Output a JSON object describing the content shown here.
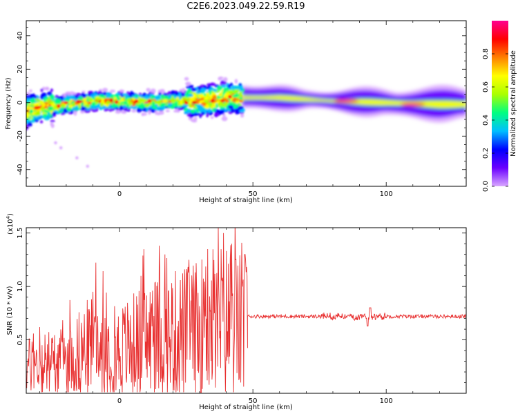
{
  "title": "C2E6.2023.049.22.59.R19",
  "chart_data": [
    {
      "type": "heatmap",
      "xlabel": "Height of straight line (km)",
      "ylabel": "Frequency (Hz)",
      "xlim": [
        -35,
        130
      ],
      "ylim": [
        -50,
        49
      ],
      "xticks": [
        0,
        50,
        100
      ],
      "yticks": [
        -40,
        -20,
        0,
        20,
        40
      ],
      "colorbar": {
        "label": "Normalized spectral amplitude",
        "range": [
          0,
          1
        ],
        "ticks": [
          "0.0",
          "0.2",
          "0.4",
          "0.6",
          "0.8"
        ],
        "colormap": [
          "#d9a7ff",
          "#6a00ff",
          "#0000ff",
          "#00bfff",
          "#00ff80",
          "#aaff00",
          "#ffff00",
          "#ff8000",
          "#ff0000",
          "#ff0090"
        ]
      },
      "features": {
        "noisy_region_x": [
          -35,
          46
        ],
        "smooth_band_x": [
          46,
          130
        ],
        "band_center_freq": [
          [
            -35,
            -5
          ],
          [
            -30,
            -3
          ],
          [
            -25,
            -2
          ],
          [
            -20,
            -1
          ],
          [
            -10,
            1
          ],
          [
            0,
            1
          ],
          [
            10,
            0
          ],
          [
            20,
            1
          ],
          [
            30,
            1
          ],
          [
            40,
            3
          ],
          [
            46,
            3
          ],
          [
            60,
            3
          ],
          [
            80,
            1
          ],
          [
            100,
            0
          ],
          [
            120,
            -1
          ],
          [
            130,
            -1
          ]
        ],
        "outlier_points": [
          [
            -24,
            -24
          ],
          [
            -22,
            -27
          ],
          [
            -16,
            -33
          ],
          [
            -12,
            -38
          ]
        ],
        "peak_spots": [
          [
            85,
            1
          ],
          [
            110,
            -1
          ]
        ]
      }
    },
    {
      "type": "line",
      "xlabel": "Height of straight line (km)",
      "ylabel": "SNR (10 * v/v)",
      "multiplier_label": "(x10",
      "multiplier_exp": "4",
      "multiplier_close": ")",
      "xlim": [
        -35,
        130
      ],
      "ylim": [
        0,
        1.55
      ],
      "xticks": [
        0,
        50,
        100
      ],
      "yticks": [
        "0.5",
        "1.0",
        "1.5"
      ],
      "ytick_values": [
        0.5,
        1.0,
        1.5
      ],
      "color": "#e83030",
      "segments": [
        {
          "x_range": [
            -35,
            48
          ],
          "description_values": [
            [
              -35,
              0.25
            ],
            [
              -20,
              0.3
            ],
            [
              -10,
              0.45
            ],
            [
              0,
              0.4
            ],
            [
              10,
              0.5
            ],
            [
              20,
              0.55
            ],
            [
              30,
              0.6
            ],
            [
              38,
              0.7
            ],
            [
              48,
              0.6
            ]
          ]
        },
        {
          "x_range": [
            48,
            130
          ],
          "level": 0.72
        }
      ],
      "peaks": [
        [
          -30,
          0.62
        ],
        [
          -10,
          0.95
        ],
        [
          8,
          1.1
        ],
        [
          17,
          1.3
        ],
        [
          26,
          1.25
        ],
        [
          33,
          1.35
        ],
        [
          37,
          1.55
        ],
        [
          39,
          1.5
        ],
        [
          42,
          1.4
        ],
        [
          47,
          1.3
        ],
        [
          94,
          0.8
        ]
      ]
    }
  ]
}
